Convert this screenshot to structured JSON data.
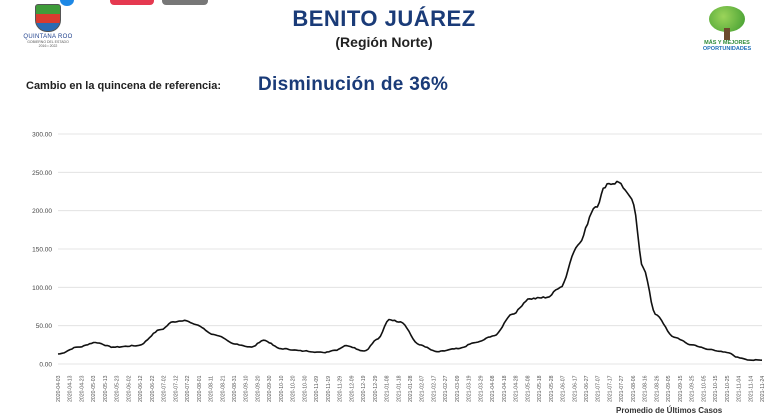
{
  "header": {
    "title": "BENITO JUÁREZ",
    "subtitle": "(Región Norte)",
    "left_logo": {
      "name": "QUINTANA ROO",
      "sub": "GOBIERNO DEL ESTADO",
      "years": "2016 • 2022"
    },
    "right_logo": {
      "line1": "MÁS Y MEJORES",
      "line2": "OPORTUNIDADES"
    }
  },
  "reference": {
    "label": "Cambio en la quincena de referencia:",
    "value": "Disminución de 36%"
  },
  "footnote": "Promedio de Últimos Casos",
  "colors": {
    "title": "#1a3b78",
    "line": "#111111",
    "grid": "#dddddd"
  },
  "chart_data": {
    "type": "line",
    "title": "",
    "xlabel": "",
    "ylabel": "",
    "ylim": [
      0,
      300
    ],
    "yticks": [
      "0.00",
      "50.00",
      "100.00",
      "150.00",
      "200.00",
      "250.00",
      "300.00"
    ],
    "grid": true,
    "x_tick_labels": [
      "2020-04-03",
      "2020-04-13",
      "2020-04-23",
      "2020-05-03",
      "2020-05-13",
      "2020-05-23",
      "2020-06-02",
      "2020-06-12",
      "2020-06-22",
      "2020-07-02",
      "2020-07-12",
      "2020-07-22",
      "2020-08-01",
      "2020-08-11",
      "2020-08-21",
      "2020-08-31",
      "2020-09-10",
      "2020-09-20",
      "2020-09-30",
      "2020-10-10",
      "2020-10-20",
      "2020-10-30",
      "2020-11-09",
      "2020-11-19",
      "2020-11-29",
      "2020-12-09",
      "2020-12-19",
      "2020-12-29",
      "2021-01-08",
      "2021-01-18",
      "2021-01-28",
      "2021-02-07",
      "2021-02-17",
      "2021-02-27",
      "2021-03-09",
      "2021-03-19",
      "2021-03-29",
      "2021-04-08",
      "2021-04-18",
      "2021-04-28",
      "2021-05-08",
      "2021-05-18",
      "2021-05-28",
      "2021-06-07",
      "2021-06-17",
      "2021-06-27",
      "2021-07-07",
      "2021-07-17",
      "2021-07-27",
      "2021-08-06",
      "2021-08-16",
      "2021-08-26",
      "2021-09-05",
      "2021-09-15",
      "2021-09-25",
      "2021-10-05",
      "2021-10-15",
      "2021-10-25",
      "2021-11-04",
      "2021-11-14",
      "2021-11-24"
    ],
    "series": [
      {
        "x": [
          "2020-04-03",
          "2020-04-20",
          "2020-05-05",
          "2020-05-20",
          "2020-06-10",
          "2020-06-30",
          "2020-07-10",
          "2020-07-20",
          "2020-07-28",
          "2020-08-15",
          "2020-09-01",
          "2020-09-15",
          "2020-09-25",
          "2020-10-10",
          "2020-10-30",
          "2020-11-15",
          "2020-11-25",
          "2020-12-05",
          "2020-12-20",
          "2021-01-01",
          "2021-01-10",
          "2021-01-20",
          "2021-02-05",
          "2021-02-20",
          "2021-03-10",
          "2021-03-25",
          "2021-04-10",
          "2021-04-25",
          "2021-05-10",
          "2021-05-25",
          "2021-06-05",
          "2021-06-20",
          "2021-07-05",
          "2021-07-15",
          "2021-07-25",
          "2021-08-05",
          "2021-08-15",
          "2021-08-25",
          "2021-09-10",
          "2021-09-25",
          "2021-10-10",
          "2021-10-25",
          "2021-11-05",
          "2021-11-15",
          "2021-11-24"
        ],
        "y": [
          13,
          22,
          28,
          22,
          24,
          45,
          55,
          57,
          52,
          38,
          26,
          22,
          31,
          20,
          17,
          15,
          18,
          24,
          17,
          33,
          58,
          55,
          25,
          16,
          20,
          28,
          37,
          65,
          85,
          87,
          100,
          155,
          205,
          235,
          237,
          215,
          125,
          65,
          35,
          25,
          19,
          15,
          8,
          5,
          5
        ]
      }
    ]
  }
}
